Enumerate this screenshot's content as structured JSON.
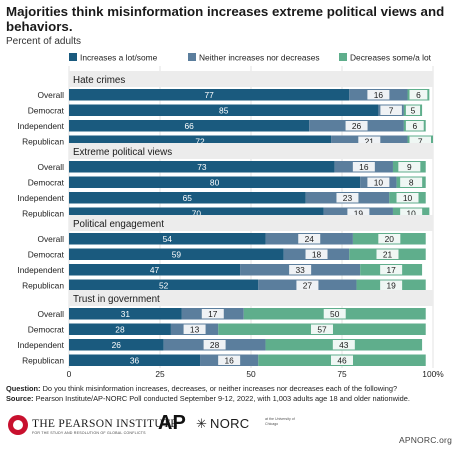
{
  "title": "Majorities think misinformation increases extreme political views and behaviors.",
  "subtitle": "Percent of adults",
  "chart_data": {
    "type": "bar",
    "orientation": "horizontal",
    "stacked": true,
    "legend": [
      "Increases a lot/some",
      "Neither increases nor decreases",
      "Decreases some/a lot"
    ],
    "colors": [
      "#1a5a7e",
      "#5b7e9d",
      "#5fae8c"
    ],
    "x_ticks": [
      "0",
      "25",
      "50",
      "75",
      "100%"
    ],
    "xlim": [
      0,
      100
    ],
    "groups": [
      {
        "name": "Hate crimes",
        "rows": [
          {
            "label": "Overall",
            "values": [
              77,
              16,
              6
            ]
          },
          {
            "label": "Democrat",
            "values": [
              85,
              7,
              5
            ]
          },
          {
            "label": "Independent",
            "values": [
              66,
              26,
              6
            ]
          },
          {
            "label": "Republican",
            "values": [
              72,
              21,
              7
            ]
          }
        ]
      },
      {
        "name": "Extreme political views",
        "rows": [
          {
            "label": "Overall",
            "values": [
              73,
              16,
              9
            ]
          },
          {
            "label": "Democrat",
            "values": [
              80,
              10,
              8
            ]
          },
          {
            "label": "Independent",
            "values": [
              65,
              23,
              10
            ]
          },
          {
            "label": "Republican",
            "values": [
              70,
              19,
              10
            ]
          }
        ]
      },
      {
        "name": "Political engagement",
        "rows": [
          {
            "label": "Overall",
            "values": [
              54,
              24,
              20
            ]
          },
          {
            "label": "Democrat",
            "values": [
              59,
              18,
              21
            ]
          },
          {
            "label": "Independent",
            "values": [
              47,
              33,
              17
            ]
          },
          {
            "label": "Republican",
            "values": [
              52,
              27,
              19
            ]
          }
        ]
      },
      {
        "name": "Trust in government",
        "rows": [
          {
            "label": "Overall",
            "values": [
              31,
              17,
              50
            ]
          },
          {
            "label": "Democrat",
            "values": [
              28,
              13,
              57
            ]
          },
          {
            "label": "Independent",
            "values": [
              26,
              28,
              43
            ]
          },
          {
            "label": "Republican",
            "values": [
              36,
              16,
              46
            ]
          }
        ]
      }
    ]
  },
  "footer": {
    "question_label": "Question:",
    "question_text": "Do you think misinformation increases, decreases, or neither increases nor decreases each of the following?",
    "source_label": "Source:",
    "source_text": "Pearson Institute/AP-NORC Poll conducted September 9-12, 2022, with 1,003 adults age 18 and older nationwide."
  },
  "logos": {
    "pearson": "THE PEARSON INSTITUTE",
    "pearson_tag": "FOR THE STUDY AND RESOLUTION OF GLOBAL CONFLICTS",
    "ap": "AP",
    "norc_icon": "✳",
    "norc": "NORC",
    "norc_sub": "at the University of Chicago",
    "url": "APNORC.org"
  }
}
